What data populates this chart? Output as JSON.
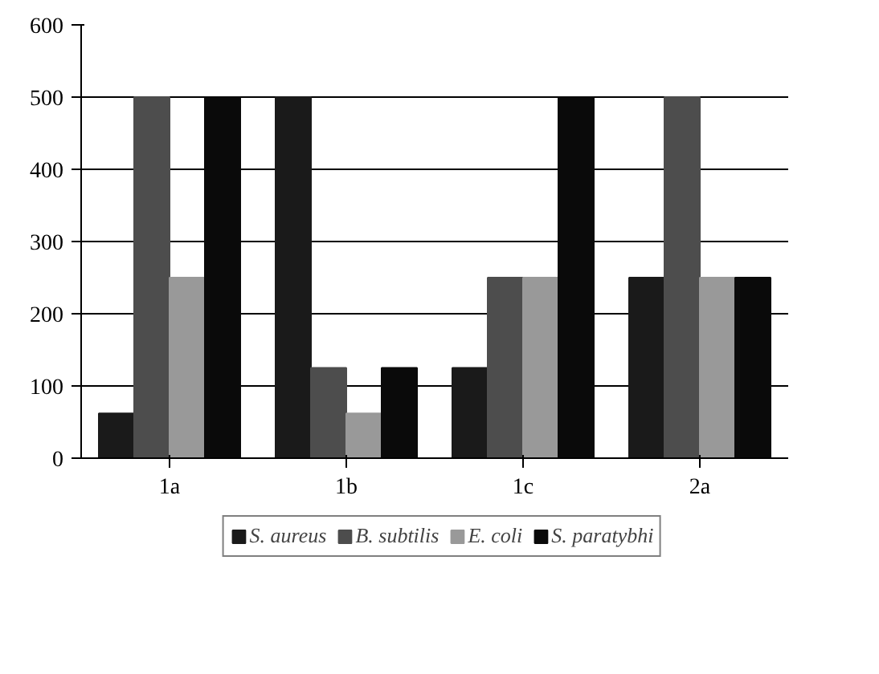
{
  "chart_data": {
    "type": "bar",
    "categories": [
      "1a",
      "1b",
      "1c",
      "2a"
    ],
    "series": [
      {
        "name": "S. aureus",
        "color": "#1a1a1a",
        "values": [
          62,
          500,
          125,
          250
        ]
      },
      {
        "name": "B. subtilis",
        "color": "#4d4d4d",
        "values": [
          500,
          125,
          250,
          500
        ]
      },
      {
        "name": "E. coli",
        "color": "#999999",
        "values": [
          250,
          62,
          250,
          250
        ]
      },
      {
        "name": "S. paratybhi",
        "color": "#0a0a0a",
        "values": [
          500,
          125,
          500,
          250
        ]
      }
    ],
    "ylim": [
      0,
      600
    ],
    "yticks": [
      0,
      100,
      200,
      300,
      400,
      500,
      600
    ],
    "grid": "y",
    "legend": "bottom"
  }
}
